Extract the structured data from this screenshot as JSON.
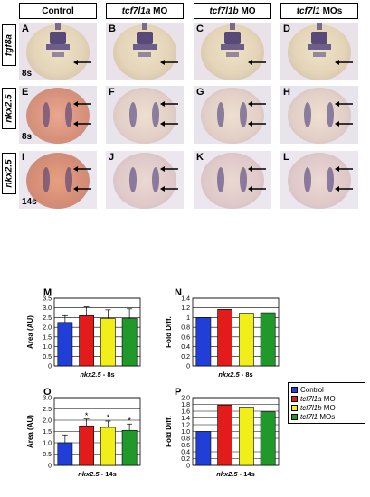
{
  "columns": [
    {
      "pre": "",
      "ital": "",
      "post": "Control"
    },
    {
      "pre": "",
      "ital": "tcf7l1a",
      "post": " MO"
    },
    {
      "pre": "",
      "ital": "tcf7l1b",
      "post": " MO"
    },
    {
      "pre": "",
      "ital": "tcf7l1",
      "post": " MOs"
    }
  ],
  "rows": [
    {
      "label": "fgf8a",
      "stage": "8s",
      "letters": [
        "A",
        "B",
        "C",
        "D"
      ]
    },
    {
      "label": "nkx2.5",
      "stage": "8s",
      "letters": [
        "E",
        "F",
        "G",
        "H"
      ]
    },
    {
      "label": "nkx2.5",
      "stage": "14s",
      "letters": [
        "I",
        "J",
        "K",
        "L"
      ]
    }
  ],
  "colors": {
    "control": "#1f3fd6",
    "a": "#e31b1b",
    "b": "#f2ee1a",
    "both": "#1f9a2a"
  },
  "legend": [
    {
      "ital": "",
      "post": "Control",
      "color": "#1f3fd6"
    },
    {
      "ital": "tcf7l1a",
      "post": " MO",
      "color": "#e31b1b"
    },
    {
      "ital": "tcf7l1b",
      "post": " MO",
      "color": "#f2ee1a"
    },
    {
      "ital": "tcf7l1",
      "post": " MOs",
      "color": "#1f9a2a"
    }
  ],
  "chart_data": [
    {
      "panel": "M",
      "type": "bar",
      "ylabel": "Area (AU)",
      "xlabel": "nkx2.5 - 8s",
      "ylim": [
        0,
        3.5
      ],
      "yticks": [
        0,
        0.5,
        1.0,
        1.5,
        2.0,
        2.5,
        3.0,
        3.5
      ],
      "ytick_labels": [
        "0",
        "0.5",
        "1.0",
        "1.5",
        "2.0",
        "2.5",
        "3.0",
        "3.5"
      ],
      "values": [
        2.25,
        2.6,
        2.45,
        2.45
      ],
      "errors": [
        0.35,
        0.45,
        0.45,
        0.5
      ],
      "significance": [
        "",
        "",
        "",
        ""
      ]
    },
    {
      "panel": "N",
      "type": "bar",
      "ylabel": "Fold Diff.",
      "xlabel": "nkx2.5 - 8s",
      "ylim": [
        0,
        1.4
      ],
      "yticks": [
        0,
        0.2,
        0.4,
        0.6,
        0.8,
        1.0,
        1.2,
        1.4
      ],
      "ytick_labels": [
        "0",
        "0.2",
        "0.4",
        "0.6",
        "0.8",
        "1",
        "1.2",
        "1.4"
      ],
      "values": [
        1.0,
        1.17,
        1.09,
        1.1
      ],
      "errors": [
        0,
        0,
        0,
        0
      ],
      "significance": [
        "",
        "",
        "",
        ""
      ]
    },
    {
      "panel": "O",
      "type": "bar",
      "ylabel": "Area (AU)",
      "xlabel": "nkx2.5 - 14s",
      "ylim": [
        0,
        3.0
      ],
      "yticks": [
        0,
        0.5,
        1.0,
        1.5,
        2.0,
        2.5,
        3.0
      ],
      "ytick_labels": [
        "0",
        "0.5",
        "1.0",
        "1.5",
        "2.0",
        "2.5",
        "3.0"
      ],
      "values": [
        1.0,
        1.75,
        1.68,
        1.55
      ],
      "errors": [
        0.35,
        0.3,
        0.28,
        0.28
      ],
      "significance": [
        "",
        "*",
        "*",
        "*"
      ]
    },
    {
      "panel": "P",
      "type": "bar",
      "ylabel": "Fold Diff.",
      "xlabel": "nkx2.5 - 14s",
      "ylim": [
        0,
        2.0
      ],
      "yticks": [
        0,
        0.2,
        0.4,
        0.6,
        0.8,
        1.0,
        1.2,
        1.4,
        1.6,
        1.8,
        2.0
      ],
      "ytick_labels": [
        "0",
        "0.2",
        "0.4",
        "0.6",
        "0.8",
        "1.0",
        "1.2",
        "1.4",
        "1.6",
        "1.8",
        "2.0"
      ],
      "values": [
        1.0,
        1.78,
        1.72,
        1.58
      ],
      "errors": [
        0,
        0,
        0,
        0
      ],
      "significance": [
        "",
        "",
        "",
        ""
      ]
    }
  ]
}
